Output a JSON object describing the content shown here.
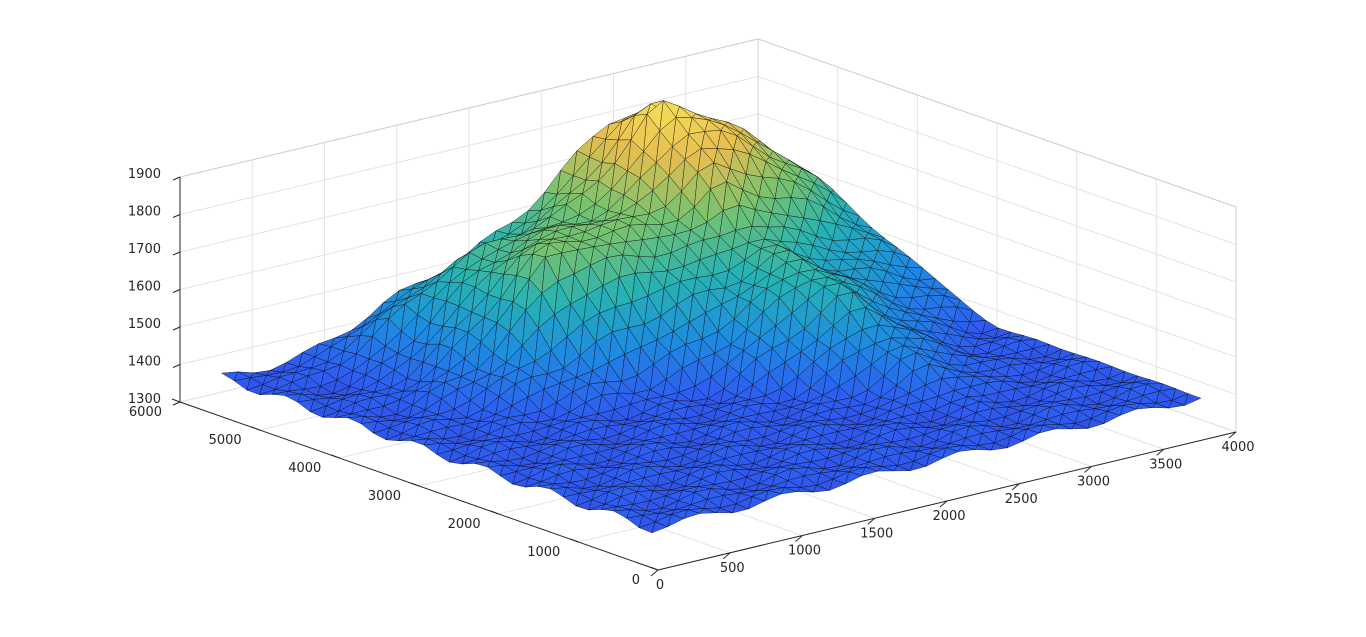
{
  "chart_data": {
    "type": "surface",
    "title": "",
    "xlabel": "",
    "ylabel": "",
    "zlabel": "",
    "grid": true,
    "box": true,
    "colormap": "parula",
    "colors": {
      "surface_low": "#3e26a8",
      "surface_mid_low": "#1f7ee8",
      "surface_mid": "#2bb3b7",
      "surface_mid_high": "#a9c25a",
      "surface_high": "#f3cb4a",
      "mesh_edges": "#000000"
    },
    "xlim": [
      0,
      4000
    ],
    "ylim": [
      0,
      6000
    ],
    "zlim": [
      1300,
      1900
    ],
    "x_ticks": [
      0,
      500,
      1000,
      1500,
      2000,
      2500,
      3000,
      3500,
      4000
    ],
    "x_tick_labels": [
      "0",
      "500",
      "1000",
      "1500",
      "2000",
      "2500",
      "3000",
      "3500",
      "4000"
    ],
    "y_ticks": [
      0,
      1000,
      2000,
      3000,
      4000,
      5000,
      6000
    ],
    "y_tick_labels": [
      "0",
      "1000",
      "2000",
      "3000",
      "4000",
      "5000",
      "6000"
    ],
    "z_ticks": [
      1300,
      1400,
      1500,
      1600,
      1700,
      1800,
      1900
    ],
    "z_tick_labels": [
      "1300",
      "1400",
      "1500",
      "1600",
      "1700",
      "1800",
      "1900"
    ],
    "peaks": [
      {
        "x": 2900,
        "y": 5300,
        "z": 1880
      },
      {
        "x": 1600,
        "y": 4300,
        "z": 1700
      }
    ],
    "base_elevation": 1370
  }
}
